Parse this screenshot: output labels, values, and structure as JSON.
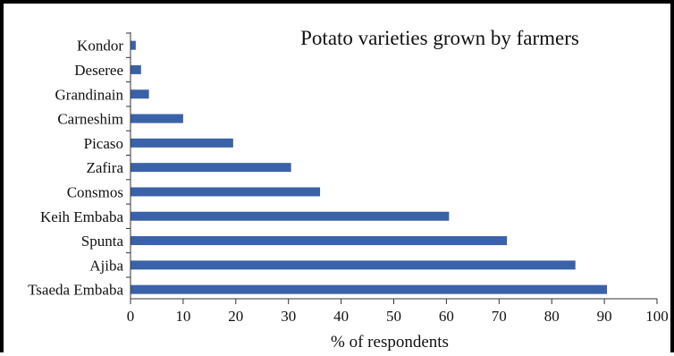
{
  "chart_data": {
    "type": "bar",
    "orientation": "horizontal",
    "title": "Potato varieties grown by farmers",
    "xlabel": "% of respondents",
    "ylabel": "",
    "categories": [
      "Kondor",
      "Deseree",
      "Grandinain",
      "Carneshim",
      "Picaso",
      "Zafira",
      "Consmos",
      "Keih Embaba",
      "Spunta",
      "Ajiba",
      "Tsaeda Embaba"
    ],
    "values": [
      1,
      2,
      3.5,
      10,
      19.5,
      30.5,
      36,
      60.5,
      71.5,
      84.5,
      90.5
    ],
    "xlim": [
      0,
      100
    ],
    "xticks": [
      "0",
      "10",
      "20",
      "30",
      "40",
      "50",
      "60",
      "70",
      "80",
      "90",
      "100"
    ],
    "grid": false,
    "legend": "none",
    "bar_color": "#3a62a8"
  }
}
